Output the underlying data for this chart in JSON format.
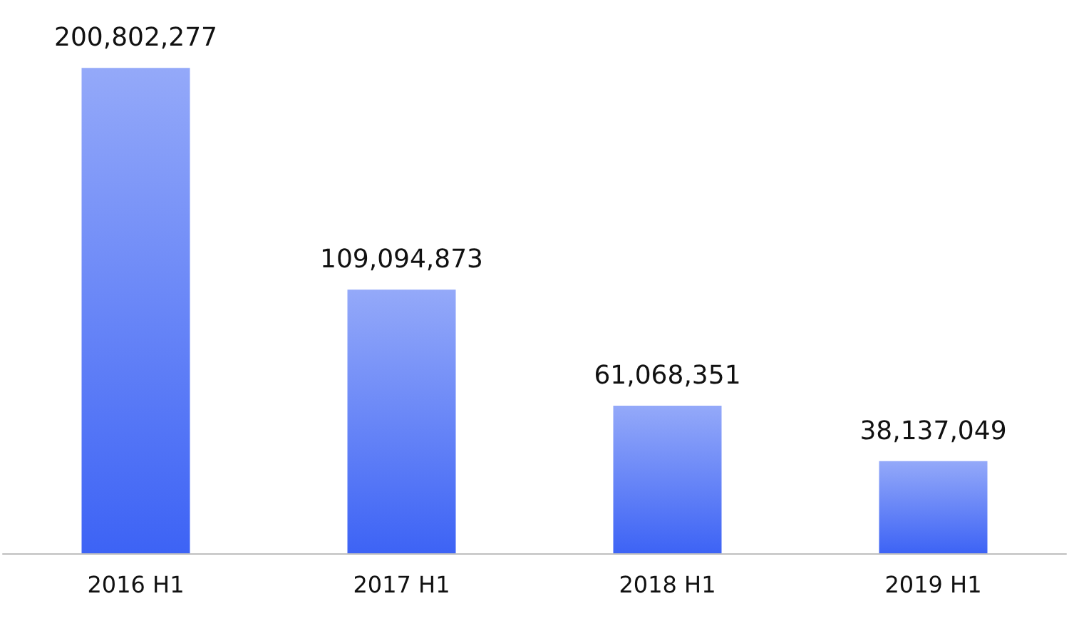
{
  "chart_data": {
    "type": "bar",
    "categories": [
      "2016 H1",
      "2017 H1",
      "2018 H1",
      "2019 H1"
    ],
    "values": [
      200802277,
      109094873,
      61068351,
      38137049
    ],
    "value_labels": [
      "200,802,277",
      "109,094,873",
      "61,068,351",
      "38,137,049"
    ],
    "color": "#3d63f5"
  }
}
